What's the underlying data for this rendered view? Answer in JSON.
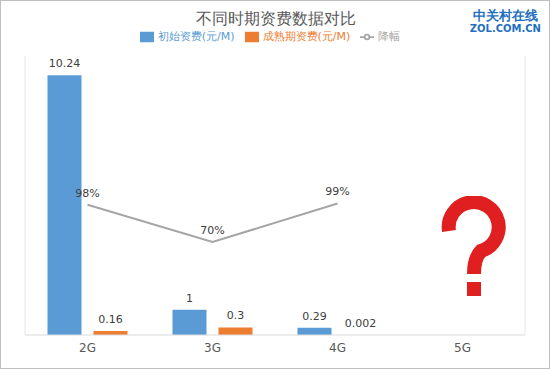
{
  "chart_data": {
    "type": "bar",
    "title": "不同时期资费数据对比",
    "categories": [
      "2G",
      "3G",
      "4G",
      "5G"
    ],
    "series": [
      {
        "name": "初始资费(元/M)",
        "type": "bar",
        "color": "#5b9bd5",
        "values": [
          10.24,
          1,
          0.29,
          null
        ]
      },
      {
        "name": "成熟期资费(元/M)",
        "type": "bar",
        "color": "#ed7d31",
        "values": [
          0.16,
          0.3,
          0.002,
          null
        ]
      },
      {
        "name": "降幅",
        "type": "line",
        "color": "#a5a5a5",
        "axis": "y2",
        "marker": "none",
        "values": [
          98,
          70,
          99,
          null
        ],
        "value_labels": [
          "98%",
          "70%",
          "99%",
          null
        ]
      }
    ],
    "ylim": [
      0,
      11
    ],
    "y2lim": [
      0,
      210
    ],
    "tick_labels": "x",
    "grid": false,
    "legend": "top",
    "data_labels": true,
    "annotations": [
      "中关村在线",
      "ZOL.COM.CN"
    ]
  }
}
